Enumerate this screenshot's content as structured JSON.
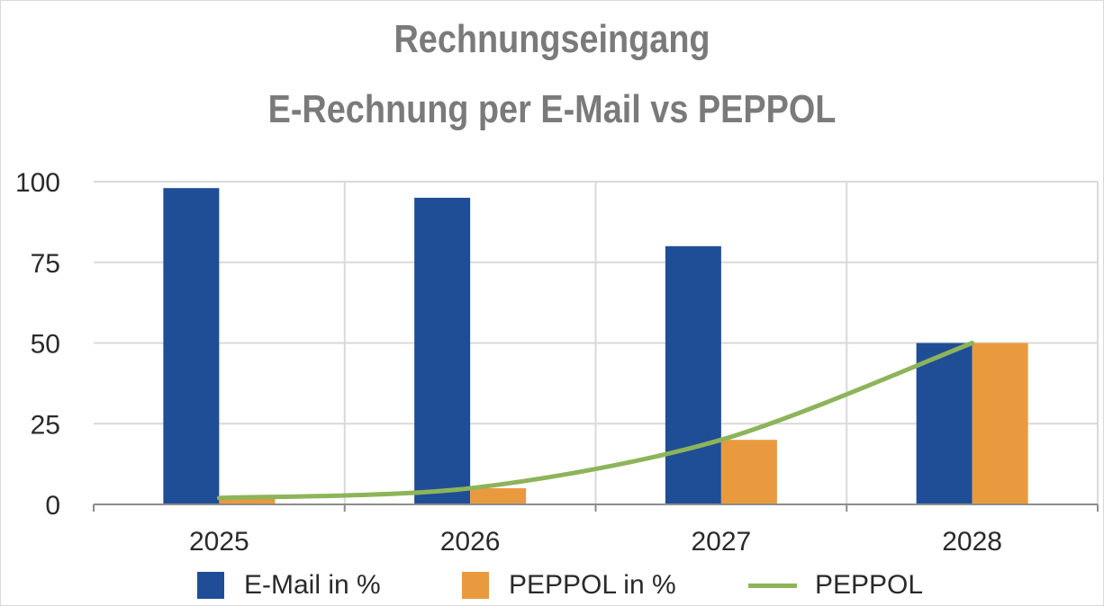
{
  "chart_data": {
    "type": "bar",
    "title": [
      "Rechnungseingang",
      "E-Rechnung per E-Mail vs PEPPOL"
    ],
    "categories": [
      "2025",
      "2026",
      "2027",
      "2028"
    ],
    "series": [
      {
        "name": "E-Mail in %",
        "kind": "bar",
        "color": "#1f4e96",
        "values": [
          98,
          95,
          80,
          50
        ]
      },
      {
        "name": "PEPPOL in %",
        "kind": "bar",
        "color": "#e99a3e",
        "values": [
          2,
          5,
          20,
          50
        ]
      },
      {
        "name": "PEPPOL",
        "kind": "line",
        "color": "#8db45a",
        "values": [
          2,
          5,
          20,
          50
        ]
      }
    ],
    "ylim": [
      0,
      100
    ],
    "yticks": [
      "0",
      "25",
      "50",
      "75",
      "100"
    ],
    "grid": true,
    "legend_position": "bottom",
    "colors": {
      "title": "#7a7a7a",
      "grid": "#d9d9d9",
      "axis": "#8c8c8c",
      "text": "#2a2a2a"
    }
  }
}
